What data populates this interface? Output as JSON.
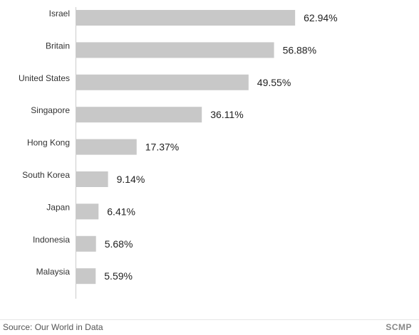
{
  "chart_data": {
    "type": "bar",
    "orientation": "horizontal",
    "categories": [
      "Israel",
      "Britain",
      "United States",
      "Singapore",
      "Hong Kong",
      "South Korea",
      "Japan",
      "Indonesia",
      "Malaysia"
    ],
    "values": [
      62.94,
      56.88,
      49.55,
      36.11,
      17.37,
      9.14,
      6.41,
      5.68,
      5.59
    ],
    "value_labels": [
      "62.94%",
      "56.88%",
      "49.55%",
      "36.11%",
      "17.37%",
      "9.14%",
      "6.41%",
      "5.68%",
      "5.59%"
    ],
    "title": "",
    "xlabel": "",
    "ylabel": "",
    "xlim": [
      0,
      70
    ],
    "grid": false,
    "bar_color": "#c8c8c8"
  },
  "footer": {
    "source": "Source: Our World in Data",
    "brand": "SCMP"
  }
}
